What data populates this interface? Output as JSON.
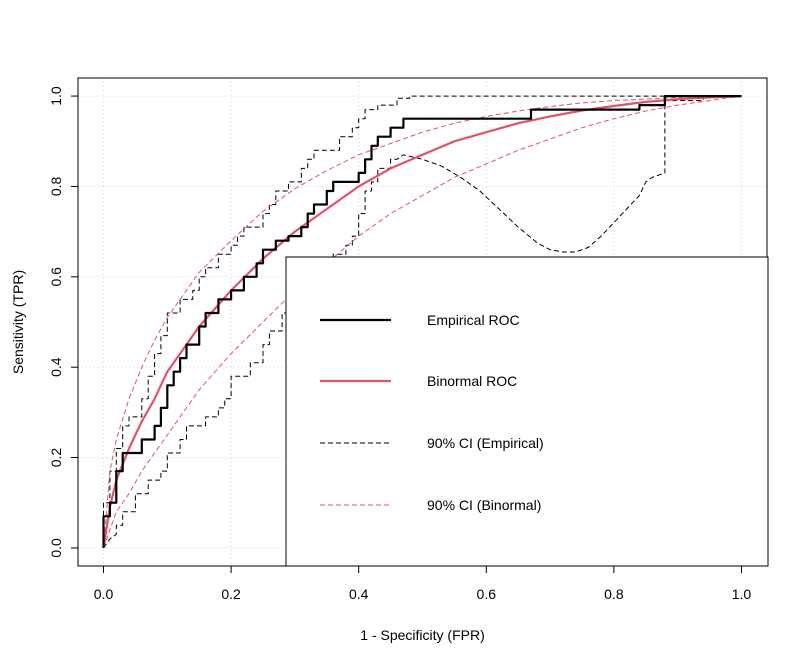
{
  "chart_data": {
    "type": "line",
    "title": "",
    "xlabel": "1 - Specificity (FPR)",
    "ylabel": "Sensitivity (TPR)",
    "xlim": [
      -0.04,
      1.04
    ],
    "ylim": [
      -0.04,
      1.04
    ],
    "xticks": [
      "0.0",
      "0.2",
      "0.4",
      "0.6",
      "0.8",
      "1.0"
    ],
    "yticks": [
      "0.0",
      "0.2",
      "0.4",
      "0.6",
      "0.8",
      "1.0"
    ],
    "grid": true,
    "legend_position": "bottom-right",
    "series": [
      {
        "name": "Empirical ROC",
        "style": "solid",
        "color": "#000000",
        "step": true,
        "points": [
          [
            0,
            0
          ],
          [
            0,
            0.07
          ],
          [
            0.01,
            0.07
          ],
          [
            0.01,
            0.1
          ],
          [
            0.02,
            0.1
          ],
          [
            0.02,
            0.17
          ],
          [
            0.03,
            0.17
          ],
          [
            0.03,
            0.21
          ],
          [
            0.06,
            0.21
          ],
          [
            0.06,
            0.24
          ],
          [
            0.08,
            0.24
          ],
          [
            0.08,
            0.27
          ],
          [
            0.09,
            0.27
          ],
          [
            0.09,
            0.31
          ],
          [
            0.1,
            0.31
          ],
          [
            0.1,
            0.36
          ],
          [
            0.11,
            0.36
          ],
          [
            0.11,
            0.39
          ],
          [
            0.12,
            0.39
          ],
          [
            0.12,
            0.42
          ],
          [
            0.13,
            0.42
          ],
          [
            0.13,
            0.45
          ],
          [
            0.15,
            0.45
          ],
          [
            0.15,
            0.49
          ],
          [
            0.16,
            0.49
          ],
          [
            0.16,
            0.52
          ],
          [
            0.18,
            0.52
          ],
          [
            0.18,
            0.55
          ],
          [
            0.2,
            0.55
          ],
          [
            0.2,
            0.57
          ],
          [
            0.22,
            0.57
          ],
          [
            0.22,
            0.6
          ],
          [
            0.24,
            0.6
          ],
          [
            0.24,
            0.63
          ],
          [
            0.25,
            0.63
          ],
          [
            0.25,
            0.66
          ],
          [
            0.27,
            0.66
          ],
          [
            0.27,
            0.68
          ],
          [
            0.29,
            0.68
          ],
          [
            0.29,
            0.69
          ],
          [
            0.31,
            0.69
          ],
          [
            0.31,
            0.71
          ],
          [
            0.32,
            0.71
          ],
          [
            0.32,
            0.74
          ],
          [
            0.33,
            0.74
          ],
          [
            0.33,
            0.76
          ],
          [
            0.35,
            0.76
          ],
          [
            0.35,
            0.79
          ],
          [
            0.36,
            0.79
          ],
          [
            0.36,
            0.81
          ],
          [
            0.4,
            0.81
          ],
          [
            0.4,
            0.83
          ],
          [
            0.41,
            0.83
          ],
          [
            0.41,
            0.86
          ],
          [
            0.42,
            0.86
          ],
          [
            0.42,
            0.89
          ],
          [
            0.43,
            0.89
          ],
          [
            0.43,
            0.91
          ],
          [
            0.45,
            0.91
          ],
          [
            0.45,
            0.93
          ],
          [
            0.47,
            0.93
          ],
          [
            0.47,
            0.95
          ],
          [
            0.67,
            0.95
          ],
          [
            0.67,
            0.97
          ],
          [
            0.84,
            0.97
          ],
          [
            0.84,
            0.98
          ],
          [
            0.88,
            0.98
          ],
          [
            0.88,
            1.0
          ],
          [
            1.0,
            1.0
          ]
        ]
      },
      {
        "name": "Binormal ROC",
        "style": "solid",
        "color": "#DF536B",
        "step": false,
        "points": [
          [
            0,
            0
          ],
          [
            0.01,
            0.09
          ],
          [
            0.02,
            0.15
          ],
          [
            0.04,
            0.22
          ],
          [
            0.06,
            0.28
          ],
          [
            0.08,
            0.33
          ],
          [
            0.1,
            0.39
          ],
          [
            0.12,
            0.43
          ],
          [
            0.15,
            0.49
          ],
          [
            0.2,
            0.57
          ],
          [
            0.25,
            0.64
          ],
          [
            0.3,
            0.7
          ],
          [
            0.35,
            0.75
          ],
          [
            0.4,
            0.8
          ],
          [
            0.45,
            0.84
          ],
          [
            0.5,
            0.87
          ],
          [
            0.55,
            0.9
          ],
          [
            0.6,
            0.92
          ],
          [
            0.65,
            0.94
          ],
          [
            0.7,
            0.955
          ],
          [
            0.75,
            0.968
          ],
          [
            0.8,
            0.978
          ],
          [
            0.85,
            0.987
          ],
          [
            0.9,
            0.993
          ],
          [
            0.95,
            0.997
          ],
          [
            1.0,
            1.0
          ]
        ]
      },
      {
        "name": "90% CI (Empirical) upper",
        "style": "dashed",
        "color": "#000000",
        "step": true,
        "points": [
          [
            0,
            0
          ],
          [
            0,
            0.1
          ],
          [
            0.01,
            0.1
          ],
          [
            0.01,
            0.17
          ],
          [
            0.02,
            0.17
          ],
          [
            0.02,
            0.22
          ],
          [
            0.03,
            0.22
          ],
          [
            0.03,
            0.27
          ],
          [
            0.04,
            0.27
          ],
          [
            0.04,
            0.29
          ],
          [
            0.06,
            0.29
          ],
          [
            0.06,
            0.33
          ],
          [
            0.07,
            0.33
          ],
          [
            0.07,
            0.38
          ],
          [
            0.08,
            0.38
          ],
          [
            0.08,
            0.43
          ],
          [
            0.09,
            0.43
          ],
          [
            0.09,
            0.47
          ],
          [
            0.1,
            0.47
          ],
          [
            0.1,
            0.52
          ],
          [
            0.12,
            0.52
          ],
          [
            0.12,
            0.55
          ],
          [
            0.14,
            0.55
          ],
          [
            0.14,
            0.57
          ],
          [
            0.15,
            0.57
          ],
          [
            0.15,
            0.6
          ],
          [
            0.16,
            0.6
          ],
          [
            0.16,
            0.62
          ],
          [
            0.18,
            0.62
          ],
          [
            0.18,
            0.65
          ],
          [
            0.2,
            0.65
          ],
          [
            0.2,
            0.67
          ],
          [
            0.21,
            0.67
          ],
          [
            0.21,
            0.69
          ],
          [
            0.22,
            0.69
          ],
          [
            0.22,
            0.71
          ],
          [
            0.25,
            0.71
          ],
          [
            0.25,
            0.74
          ],
          [
            0.26,
            0.74
          ],
          [
            0.26,
            0.76
          ],
          [
            0.27,
            0.76
          ],
          [
            0.27,
            0.79
          ],
          [
            0.29,
            0.79
          ],
          [
            0.29,
            0.81
          ],
          [
            0.31,
            0.81
          ],
          [
            0.31,
            0.84
          ],
          [
            0.32,
            0.84
          ],
          [
            0.32,
            0.86
          ],
          [
            0.33,
            0.86
          ],
          [
            0.33,
            0.88
          ],
          [
            0.37,
            0.88
          ],
          [
            0.37,
            0.91
          ],
          [
            0.39,
            0.91
          ],
          [
            0.39,
            0.93
          ],
          [
            0.4,
            0.93
          ],
          [
            0.4,
            0.95
          ],
          [
            0.41,
            0.95
          ],
          [
            0.41,
            0.97
          ],
          [
            0.43,
            0.97
          ],
          [
            0.43,
            0.98
          ],
          [
            0.46,
            0.98
          ],
          [
            0.46,
            0.995
          ],
          [
            0.48,
            0.995
          ],
          [
            0.48,
            1.0
          ],
          [
            1.0,
            1.0
          ]
        ]
      },
      {
        "name": "90% CI (Empirical) lower",
        "style": "dashed",
        "color": "#000000",
        "step": false,
        "points": [
          [
            0,
            0
          ],
          [
            0.01,
            0.02
          ],
          [
            0.02,
            0.03
          ],
          [
            0.02,
            0.05
          ],
          [
            0.03,
            0.05
          ],
          [
            0.03,
            0.08
          ],
          [
            0.05,
            0.08
          ],
          [
            0.05,
            0.12
          ],
          [
            0.07,
            0.12
          ],
          [
            0.07,
            0.15
          ],
          [
            0.09,
            0.15
          ],
          [
            0.09,
            0.17
          ],
          [
            0.1,
            0.17
          ],
          [
            0.1,
            0.21
          ],
          [
            0.12,
            0.21
          ],
          [
            0.12,
            0.24
          ],
          [
            0.13,
            0.24
          ],
          [
            0.13,
            0.27
          ],
          [
            0.16,
            0.27
          ],
          [
            0.16,
            0.29
          ],
          [
            0.18,
            0.29
          ],
          [
            0.18,
            0.31
          ],
          [
            0.19,
            0.31
          ],
          [
            0.19,
            0.33
          ],
          [
            0.2,
            0.33
          ],
          [
            0.2,
            0.38
          ],
          [
            0.23,
            0.38
          ],
          [
            0.23,
            0.41
          ],
          [
            0.25,
            0.41
          ],
          [
            0.25,
            0.45
          ],
          [
            0.26,
            0.45
          ],
          [
            0.26,
            0.48
          ],
          [
            0.28,
            0.48
          ],
          [
            0.28,
            0.52
          ],
          [
            0.3,
            0.52
          ],
          [
            0.3,
            0.55
          ],
          [
            0.32,
            0.55
          ],
          [
            0.32,
            0.57
          ],
          [
            0.34,
            0.57
          ],
          [
            0.34,
            0.6
          ],
          [
            0.35,
            0.6
          ],
          [
            0.35,
            0.62
          ],
          [
            0.36,
            0.62
          ],
          [
            0.36,
            0.65
          ],
          [
            0.38,
            0.65
          ],
          [
            0.38,
            0.67
          ],
          [
            0.39,
            0.67
          ],
          [
            0.39,
            0.69
          ],
          [
            0.4,
            0.69
          ],
          [
            0.4,
            0.71
          ],
          [
            0.4,
            0.74
          ],
          [
            0.41,
            0.74
          ],
          [
            0.41,
            0.79
          ],
          [
            0.42,
            0.79
          ],
          [
            0.42,
            0.81
          ],
          [
            0.43,
            0.81
          ],
          [
            0.43,
            0.84
          ],
          [
            0.45,
            0.84
          ],
          [
            0.45,
            0.86
          ],
          [
            0.46,
            0.86
          ],
          [
            0.47,
            0.87
          ],
          [
            0.5,
            0.86
          ],
          [
            0.53,
            0.845
          ],
          [
            0.56,
            0.82
          ],
          [
            0.59,
            0.79
          ],
          [
            0.62,
            0.75
          ],
          [
            0.65,
            0.71
          ],
          [
            0.68,
            0.675
          ],
          [
            0.7,
            0.66
          ],
          [
            0.72,
            0.655
          ],
          [
            0.74,
            0.655
          ],
          [
            0.76,
            0.665
          ],
          [
            0.78,
            0.69
          ],
          [
            0.8,
            0.72
          ],
          [
            0.82,
            0.75
          ],
          [
            0.84,
            0.78
          ],
          [
            0.85,
            0.81
          ],
          [
            0.86,
            0.82
          ],
          [
            0.88,
            0.83
          ],
          [
            0.88,
            0.99
          ],
          [
            0.94,
            0.99
          ],
          [
            0.94,
            1.0
          ],
          [
            1.0,
            1.0
          ]
        ]
      },
      {
        "name": "90% CI (Binormal) upper",
        "style": "dashed",
        "color": "#DF536B",
        "step": false,
        "points": [
          [
            0,
            0
          ],
          [
            0.01,
            0.17
          ],
          [
            0.02,
            0.24
          ],
          [
            0.04,
            0.33
          ],
          [
            0.06,
            0.4
          ],
          [
            0.08,
            0.46
          ],
          [
            0.1,
            0.51
          ],
          [
            0.12,
            0.55
          ],
          [
            0.15,
            0.61
          ],
          [
            0.2,
            0.68
          ],
          [
            0.25,
            0.745
          ],
          [
            0.3,
            0.795
          ],
          [
            0.35,
            0.835
          ],
          [
            0.4,
            0.87
          ],
          [
            0.45,
            0.895
          ],
          [
            0.5,
            0.92
          ],
          [
            0.55,
            0.94
          ],
          [
            0.6,
            0.955
          ],
          [
            0.65,
            0.967
          ],
          [
            0.7,
            0.977
          ],
          [
            0.75,
            0.985
          ],
          [
            0.8,
            0.99
          ],
          [
            0.9,
            0.997
          ],
          [
            1.0,
            1.0
          ]
        ]
      },
      {
        "name": "90% CI (Binormal) lower",
        "style": "dashed",
        "color": "#DF536B",
        "step": false,
        "points": [
          [
            0,
            0
          ],
          [
            0.01,
            0.04
          ],
          [
            0.02,
            0.08
          ],
          [
            0.04,
            0.12
          ],
          [
            0.06,
            0.17
          ],
          [
            0.08,
            0.21
          ],
          [
            0.1,
            0.25
          ],
          [
            0.12,
            0.29
          ],
          [
            0.15,
            0.35
          ],
          [
            0.2,
            0.43
          ],
          [
            0.25,
            0.5
          ],
          [
            0.3,
            0.57
          ],
          [
            0.35,
            0.63
          ],
          [
            0.4,
            0.69
          ],
          [
            0.45,
            0.74
          ],
          [
            0.5,
            0.78
          ],
          [
            0.55,
            0.82
          ],
          [
            0.6,
            0.85
          ],
          [
            0.65,
            0.88
          ],
          [
            0.7,
            0.905
          ],
          [
            0.75,
            0.93
          ],
          [
            0.8,
            0.95
          ],
          [
            0.85,
            0.967
          ],
          [
            0.9,
            0.98
          ],
          [
            0.95,
            0.99
          ],
          [
            1.0,
            1.0
          ]
        ]
      }
    ],
    "legend": [
      {
        "label": "Empirical ROC",
        "style": "solid",
        "color": "#000000",
        "width": 2.2
      },
      {
        "label": "Binormal ROC",
        "style": "solid",
        "color": "#DF536B",
        "width": 2.2
      },
      {
        "label": "90% CI (Empirical)",
        "style": "dashed",
        "color": "#000000",
        "width": 1
      },
      {
        "label": "90% CI (Binormal)",
        "style": "dashed",
        "color": "#DF536B",
        "width": 1
      }
    ]
  }
}
